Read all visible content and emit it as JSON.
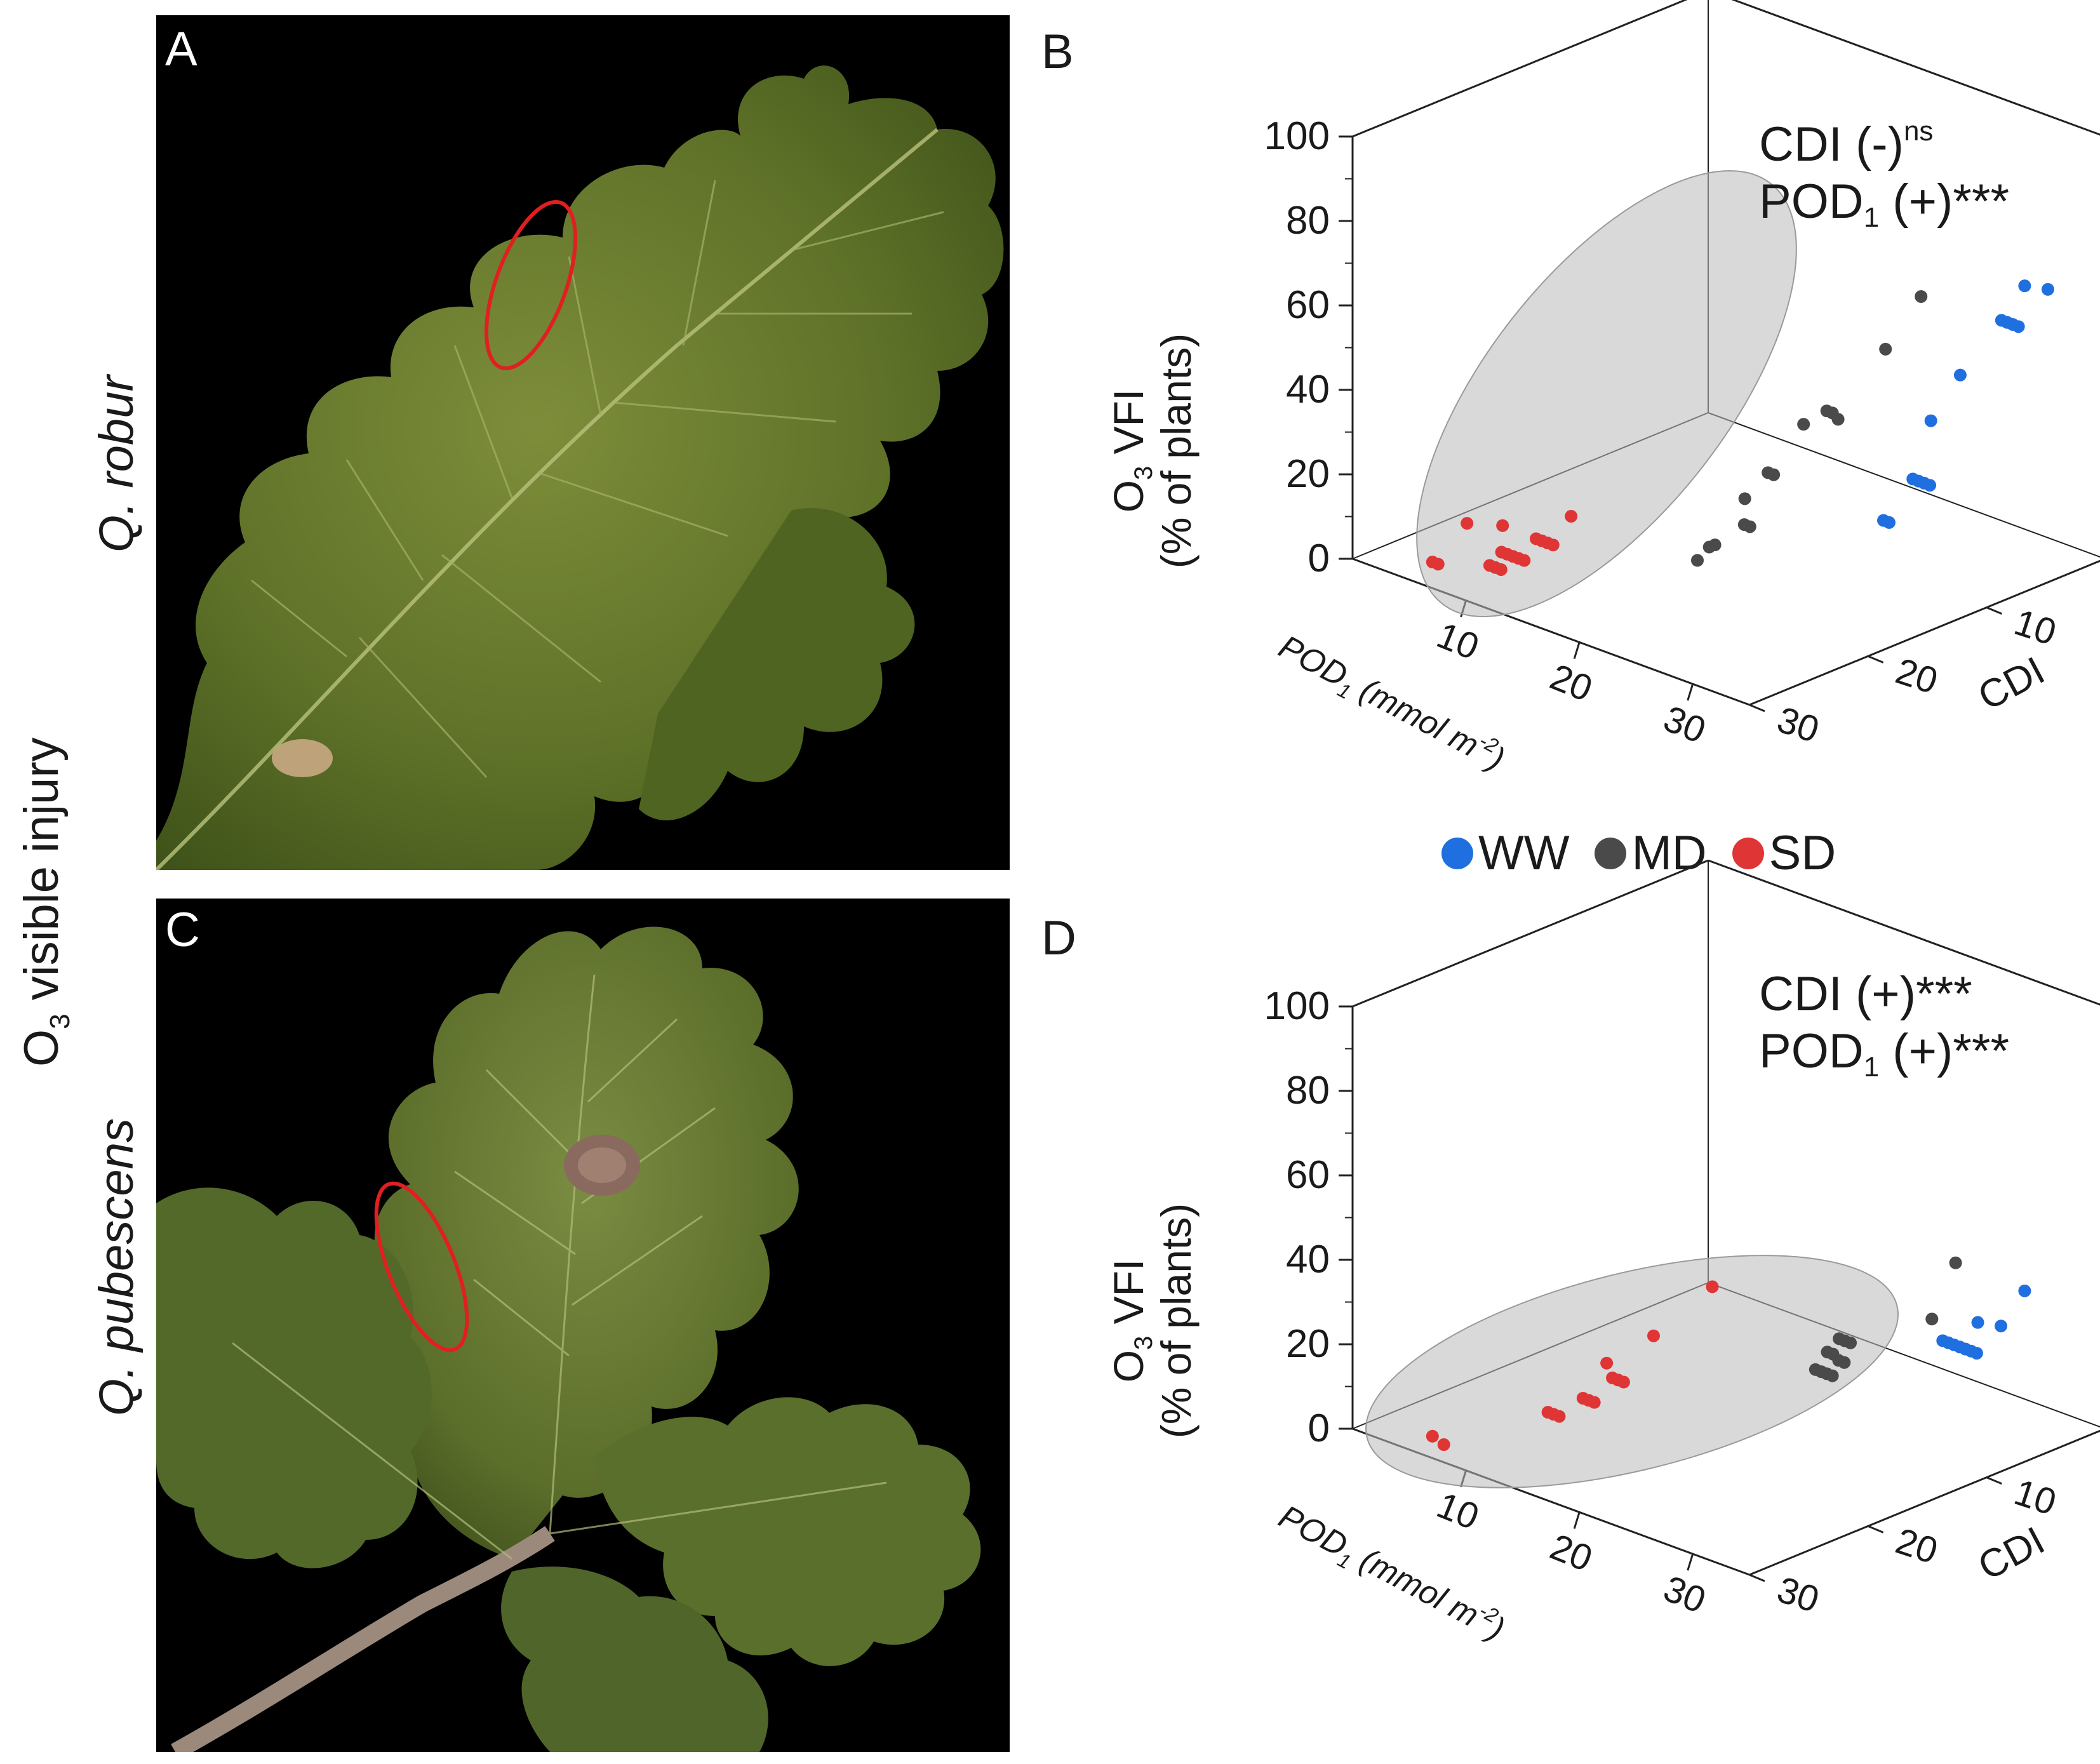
{
  "panels": {
    "A": {
      "letter": "A"
    },
    "B": {
      "letter": "B"
    },
    "C": {
      "letter": "C"
    },
    "D": {
      "letter": "D"
    }
  },
  "left_labels": {
    "species_top": {
      "genus": "Q.",
      "epithet": "robur"
    },
    "species_bottom": {
      "genus": "Q.",
      "epithet": "pubescens"
    },
    "injury": {
      "pre": "O",
      "sub": "3",
      "post": " visible injury"
    }
  },
  "plots": {
    "B": {
      "annotation": {
        "line1": {
          "pre": "CDI (-)",
          "sup": "ns"
        },
        "line2": {
          "pre": "POD",
          "sub": "1",
          "post": " (+)***"
        }
      }
    },
    "D": {
      "annotation": {
        "line1": {
          "pre": "CDI (+)***",
          "sup": ""
        },
        "line2": {
          "pre": "POD",
          "sub": "1",
          "post": " (+)***"
        }
      }
    }
  },
  "axis_text": {
    "z_label_line1_pre": "O",
    "z_label_line1_sub": "3",
    "z_label_line1_post": " VFI",
    "z_label_line2": "(% of plants)",
    "x_label_pre": "POD",
    "x_label_sub": "1",
    "x_label_post": " (mmol m",
    "x_label_sup": "-2",
    "x_label_end": ")",
    "y_label": "CDI"
  },
  "legend": [
    {
      "label": "WW",
      "color": "#1f6fe0"
    },
    {
      "label": "MD",
      "color": "#4a4a4a"
    },
    {
      "label": "SD",
      "color": "#e03535"
    }
  ],
  "colors": {
    "WW": "#1f6fe0",
    "MD": "#4a4a4a",
    "SD": "#e03535",
    "ellipse": "#b5b5b5",
    "highlight_ring": "#e02020"
  },
  "chart_data": [
    {
      "type": "scatter",
      "panel": "B",
      "zlabel": "O3 VFI (% of plants)",
      "xlabel": "POD1 (mmol m-2)",
      "ylabel": "CDI",
      "zlim": [
        0,
        100
      ],
      "xlim": [
        0,
        35
      ],
      "ylim": [
        0,
        30
      ],
      "z_ticks": [
        0,
        20,
        40,
        60,
        80,
        100
      ],
      "x_ticks": [
        10,
        20,
        30
      ],
      "y_ticks": [
        0,
        10,
        20,
        30
      ],
      "series": [
        {
          "name": "WW",
          "points": [
            [
              30,
              2,
              62
            ],
            [
              31,
              1,
              61
            ],
            [
              29,
              3,
              54
            ],
            [
              29.5,
              3,
              54
            ],
            [
              30,
              3,
              54
            ],
            [
              30.5,
              3,
              54
            ],
            [
              28.5,
              6,
              44
            ],
            [
              28,
              8,
              35
            ],
            [
              28.5,
              10,
              24
            ],
            [
              29,
              10,
              24
            ],
            [
              29.5,
              10,
              24
            ],
            [
              30,
              10,
              24
            ],
            [
              28,
              12,
              16
            ],
            [
              28.5,
              12,
              16
            ]
          ]
        },
        {
          "name": "MD",
          "points": [
            [
              24,
              5,
              57
            ],
            [
              24,
              8,
              48
            ],
            [
              23,
              12,
              37
            ],
            [
              23.5,
              12,
              37
            ],
            [
              24,
              12,
              36
            ],
            [
              22,
              13,
              34
            ],
            [
              22,
              16,
              26
            ],
            [
              22.5,
              16,
              26
            ],
            [
              21,
              17,
              20
            ],
            [
              22,
              18,
              16
            ],
            [
              22.5,
              18,
              16
            ],
            [
              21,
              20,
              12
            ],
            [
              21,
              21,
              10
            ],
            [
              21.5,
              20,
              13
            ]
          ]
        },
        {
          "name": "SD",
          "points": [
            [
              12,
              26,
              12
            ],
            [
              12.5,
              26,
              12
            ],
            [
              13,
              26,
              12
            ],
            [
              13.5,
              26,
              12
            ],
            [
              10,
              27,
              8
            ],
            [
              10.5,
              27,
              8
            ],
            [
              11,
              27,
              8
            ],
            [
              11.5,
              27,
              8
            ],
            [
              12,
              27,
              8
            ],
            [
              10,
              28,
              6
            ],
            [
              10.5,
              28,
              6
            ],
            [
              11,
              28,
              6
            ],
            [
              8,
              28,
              14
            ],
            [
              8,
              25,
              10
            ],
            [
              6,
              29,
              4
            ],
            [
              6.5,
              29,
              4
            ],
            [
              13,
              24,
              16
            ]
          ]
        }
      ]
    },
    {
      "type": "scatter",
      "panel": "D",
      "zlabel": "O3 VFI (% of plants)",
      "xlabel": "POD1 (mmol m-2)",
      "ylabel": "CDI",
      "zlim": [
        0,
        100
      ],
      "xlim": [
        0,
        35
      ],
      "ylim": [
        0,
        30
      ],
      "z_ticks": [
        0,
        20,
        40,
        60,
        80,
        100
      ],
      "x_ticks": [
        10,
        20,
        30
      ],
      "y_ticks": [
        0,
        10,
        20,
        30
      ],
      "series": [
        {
          "name": "WW",
          "points": [
            [
              30,
              2,
              30
            ],
            [
              30,
              4,
              24
            ],
            [
              29,
              5,
              25
            ],
            [
              28,
              7,
              22
            ],
            [
              28.5,
              7,
              22
            ],
            [
              29,
              7,
              22
            ],
            [
              29.5,
              7,
              22
            ],
            [
              30,
              7,
              22
            ],
            [
              30.5,
              7,
              22
            ],
            [
              31,
              7,
              22
            ]
          ]
        },
        {
          "name": "MD",
          "points": [
            [
              26,
              4,
              35
            ],
            [
              26,
              6,
              24
            ],
            [
              22,
              10,
              20
            ],
            [
              22.5,
              10,
              20
            ],
            [
              23,
              10,
              20
            ],
            [
              22,
              11,
              18
            ],
            [
              22.5,
              11,
              18
            ],
            [
              23,
              11,
              17
            ],
            [
              23.5,
              11,
              17
            ],
            [
              22,
              12,
              15
            ],
            [
              22.5,
              12,
              15
            ],
            [
              23,
              12,
              15
            ],
            [
              23.5,
              12,
              15
            ]
          ]
        },
        {
          "name": "SD",
          "points": [
            [
              15,
              14,
              30
            ],
            [
              14,
              18,
              22
            ],
            [
              13,
              21,
              18
            ],
            [
              13.5,
              21,
              15
            ],
            [
              14,
              21,
              15
            ],
            [
              14.5,
              21,
              15
            ],
            [
              13,
              23,
              12
            ],
            [
              13.5,
              23,
              12
            ],
            [
              14,
              23,
              12
            ],
            [
              12,
              25,
              10
            ],
            [
              12.5,
              25,
              10
            ],
            [
              13,
              25,
              10
            ],
            [
              6,
              29,
              3
            ],
            [
              7,
              29,
              2
            ]
          ]
        }
      ]
    }
  ]
}
